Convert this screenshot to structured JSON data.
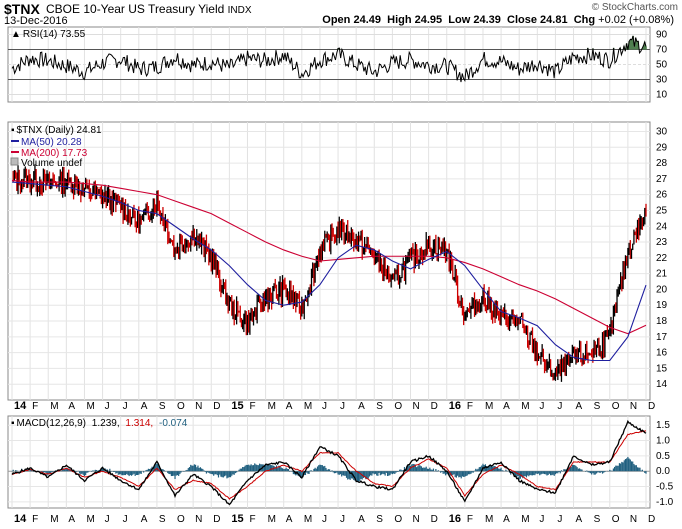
{
  "header": {
    "ticker": "$TNX",
    "name": "CBOE 10-Year US Treasury Yield",
    "exchange": "INDX",
    "date": "13-Dec-2016",
    "copyright": "© StockCharts.com",
    "open_label": "Open",
    "open": "24.49",
    "high_label": "High",
    "high": "24.95",
    "low_label": "Low",
    "low": "24.39",
    "close_label": "Close",
    "close": "24.81",
    "chg_label": "Chg",
    "chg": "+0.02 (+0.08%)"
  },
  "rsi_panel": {
    "legend": "RSI(14) 73.55",
    "yticks": [
      "90",
      "70",
      "50",
      "30",
      "10"
    ],
    "level_hi": 70,
    "level_lo": 30,
    "range": [
      0,
      100
    ]
  },
  "price_panel": {
    "legend_main": "$TNX (Daily) 24.81",
    "legend_ma50": "MA(50) 20.28",
    "legend_ma200": "MA(200) 17.73",
    "legend_vol": "Volume undef",
    "yticks": [
      "30",
      "29",
      "28",
      "27",
      "26",
      "25",
      "24",
      "23",
      "22",
      "21",
      "20",
      "19",
      "18",
      "17",
      "16",
      "15",
      "14"
    ]
  },
  "macd_panel": {
    "legend_label": "MACD(12,26,9)",
    "legend_v1": "1.239,",
    "legend_v2": "1.314,",
    "legend_v3": "-0.074",
    "yticks": [
      "1.5",
      "1.0",
      "0.5",
      "0.0",
      "-0.5",
      "-1.0"
    ]
  },
  "xaxis": {
    "labels": [
      "14",
      "F",
      "M",
      "A",
      "M",
      "J",
      "J",
      "A",
      "S",
      "O",
      "N",
      "D",
      "15",
      "F",
      "M",
      "A",
      "M",
      "J",
      "J",
      "A",
      "S",
      "O",
      "N",
      "D",
      "16",
      "F",
      "M",
      "A",
      "M",
      "J",
      "J",
      "A",
      "S",
      "O",
      "N",
      "D"
    ]
  },
  "colors": {
    "up": "#000000",
    "down": "#cc0000",
    "ma50": "#1f1f9f",
    "ma200": "#cc0033",
    "macd_line": "#000000",
    "signal_line": "#cc0000",
    "histogram": "#1f5f7f",
    "rsi_fill": "#4f7f4f"
  },
  "chart_data": [
    {
      "type": "line",
      "title": "RSI(14) 73.55",
      "ylim": [
        0,
        100
      ],
      "series": [
        {
          "name": "RSI(14)",
          "values_monthly": [
            45,
            58,
            55,
            48,
            40,
            52,
            57,
            44,
            47,
            60,
            49,
            53,
            46,
            58,
            55,
            62,
            38,
            56,
            63,
            50,
            40,
            52,
            56,
            49,
            48,
            33,
            57,
            54,
            44,
            52,
            40,
            60,
            62,
            56,
            80,
            74
          ]
        }
      ]
    },
    {
      "type": "line",
      "title": "$TNX (Daily) 24.81",
      "x": [
        "2014-01",
        "2014-02",
        "2014-03",
        "2014-04",
        "2014-05",
        "2014-06",
        "2014-07",
        "2014-08",
        "2014-09",
        "2014-10",
        "2014-11",
        "2014-12",
        "2015-01",
        "2015-02",
        "2015-03",
        "2015-04",
        "2015-05",
        "2015-06",
        "2015-07",
        "2015-08",
        "2015-09",
        "2015-10",
        "2015-11",
        "2015-12",
        "2016-01",
        "2016-02",
        "2016-03",
        "2016-04",
        "2016-05",
        "2016-06",
        "2016-07",
        "2016-08",
        "2016-09",
        "2016-10",
        "2016-11",
        "2016-12"
      ],
      "ylim": [
        13,
        30
      ],
      "series": [
        {
          "name": "$TNX",
          "values": [
            27.0,
            26.9,
            26.8,
            26.9,
            26.3,
            25.9,
            25.3,
            24.2,
            25.6,
            22.5,
            23.5,
            22.0,
            19.0,
            17.8,
            19.5,
            20.0,
            18.8,
            22.5,
            23.8,
            23.2,
            22.2,
            20.5,
            21.8,
            22.8,
            22.5,
            18.3,
            19.5,
            18.2,
            18.0,
            16.0,
            14.5,
            15.7,
            16.0,
            17.0,
            22.5,
            24.8
          ]
        },
        {
          "name": "MA(50)",
          "values": [
            26.8,
            26.7,
            26.6,
            26.5,
            26.2,
            25.9,
            25.5,
            25.0,
            24.8,
            24.0,
            23.2,
            22.5,
            21.5,
            20.3,
            19.3,
            19.0,
            19.2,
            20.3,
            22.0,
            22.8,
            22.5,
            21.8,
            21.3,
            21.9,
            22.4,
            21.5,
            20.0,
            18.6,
            18.2,
            17.7,
            16.5,
            15.7,
            15.5,
            15.5,
            17.0,
            20.28
          ]
        },
        {
          "name": "MA(200)",
          "values": [
            26.9,
            26.8,
            26.8,
            26.8,
            26.7,
            26.6,
            26.4,
            26.2,
            26.0,
            25.6,
            25.2,
            24.8,
            24.2,
            23.6,
            23.0,
            22.5,
            22.1,
            21.8,
            21.9,
            22.0,
            22.1,
            22.1,
            22.1,
            22.1,
            22.0,
            21.7,
            21.3,
            20.8,
            20.3,
            19.9,
            19.4,
            18.8,
            18.2,
            17.6,
            17.2,
            17.73
          ]
        }
      ]
    },
    {
      "type": "line",
      "title": "MACD(12,26,9)",
      "ylim": [
        -1.2,
        1.8
      ],
      "series": [
        {
          "name": "MACD",
          "values": [
            -0.1,
            0.1,
            -0.2,
            0.2,
            -0.3,
            0.1,
            -0.3,
            -0.6,
            0.3,
            -0.8,
            -0.1,
            -0.5,
            -1.1,
            -0.3,
            0.2,
            0.3,
            -0.2,
            0.8,
            0.5,
            -0.3,
            -0.5,
            -0.6,
            0.3,
            0.5,
            0.0,
            -1.0,
            0.1,
            0.3,
            -0.3,
            -0.6,
            -0.7,
            0.5,
            0.2,
            0.3,
            1.6,
            1.239
          ]
        },
        {
          "name": "Signal",
          "values": [
            -0.1,
            0.05,
            -0.1,
            0.1,
            -0.2,
            0.0,
            -0.2,
            -0.5,
            0.1,
            -0.6,
            -0.3,
            -0.4,
            -0.9,
            -0.5,
            0.0,
            0.2,
            0.0,
            0.6,
            0.6,
            0.0,
            -0.4,
            -0.5,
            0.1,
            0.4,
            0.1,
            -0.8,
            -0.1,
            0.2,
            -0.1,
            -0.5,
            -0.6,
            0.3,
            0.3,
            0.3,
            1.2,
            1.314
          ]
        }
      ]
    }
  ]
}
